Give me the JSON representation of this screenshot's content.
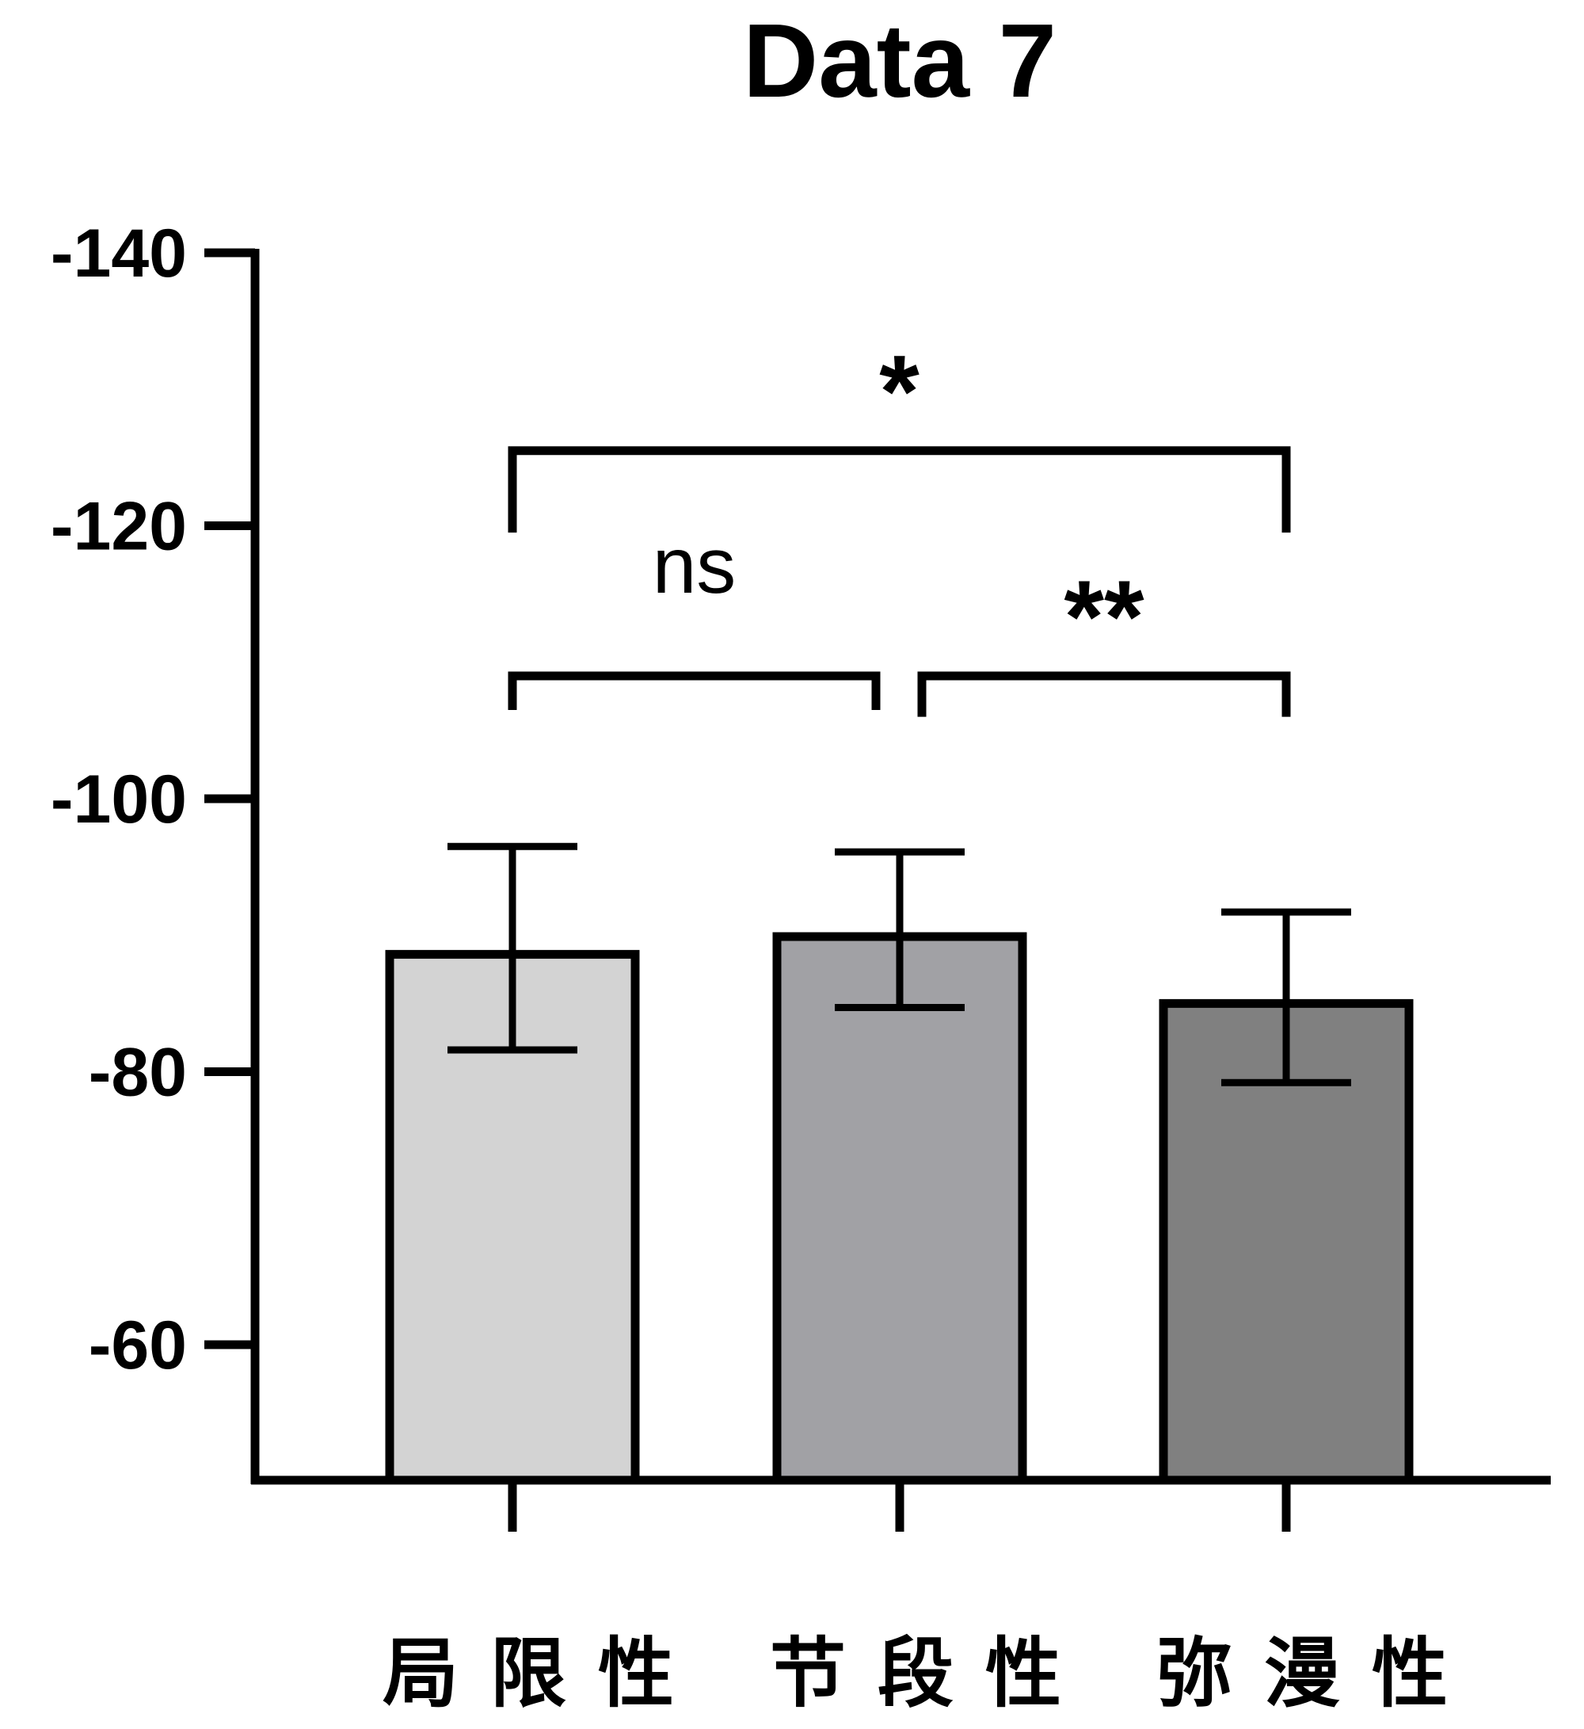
{
  "chart_data": {
    "type": "bar",
    "title": "Data 7",
    "xlabel": "",
    "ylabel": "",
    "ylim": [
      -50,
      -140
    ],
    "y_axis_reversed": true,
    "yticks": [
      -140,
      -120,
      -100,
      -80,
      -60
    ],
    "ytick_labels": [
      "-140",
      "-120",
      "-100",
      "-80",
      "-60"
    ],
    "categories": [
      "局限性",
      "节段性",
      "弥漫性"
    ],
    "values": [
      -88.6,
      -89.9,
      -85.0
    ],
    "error_top": [
      -96.5,
      -96.1,
      -91.7
    ],
    "error_bottom": [
      -81.6,
      -84.7,
      -79.2
    ],
    "colors": [
      "#d3d3d3",
      "#a1a1a5",
      "#808080"
    ],
    "grid": false,
    "annotations": [
      {
        "from": 0,
        "to": 2,
        "label": "*",
        "y": -125.5,
        "leg": -119.5
      },
      {
        "from": 0,
        "to": 1,
        "label": "ns",
        "y": -109,
        "leg": -106.5
      },
      {
        "from": 1,
        "to": 2,
        "label": "**",
        "y": -109,
        "leg": -106
      }
    ]
  }
}
